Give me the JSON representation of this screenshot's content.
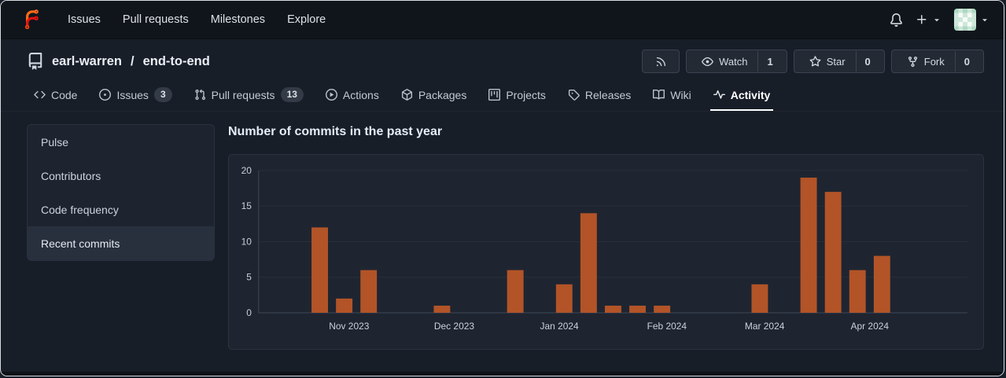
{
  "navbar": {
    "logo": "forgejo-logo",
    "items": [
      {
        "label": "Issues"
      },
      {
        "label": "Pull requests"
      },
      {
        "label": "Milestones"
      },
      {
        "label": "Explore"
      }
    ],
    "right_icons": [
      "bell-icon",
      "plus-icon",
      "caret-down-icon",
      "user-avatar",
      "caret-down-icon"
    ]
  },
  "repo_header": {
    "icon": "repo-book-icon",
    "owner": "earl-warren",
    "separator": "/",
    "name": "end-to-end",
    "actions": {
      "rss": {
        "icon": "rss-icon"
      },
      "watch": {
        "icon": "eye-icon",
        "label": "Watch",
        "count": "1"
      },
      "star": {
        "icon": "star-icon",
        "label": "Star",
        "count": "0"
      },
      "fork": {
        "icon": "fork-icon",
        "label": "Fork",
        "count": "0"
      }
    }
  },
  "tabs": [
    {
      "label": "Code",
      "icon": "code-icon"
    },
    {
      "label": "Issues",
      "icon": "issue-opened-icon",
      "badge": "3"
    },
    {
      "label": "Pull requests",
      "icon": "git-pull-request-icon",
      "badge": "13"
    },
    {
      "label": "Actions",
      "icon": "play-circle-icon"
    },
    {
      "label": "Packages",
      "icon": "package-icon"
    },
    {
      "label": "Projects",
      "icon": "project-board-icon"
    },
    {
      "label": "Releases",
      "icon": "tag-icon"
    },
    {
      "label": "Wiki",
      "icon": "book-icon"
    },
    {
      "label": "Activity",
      "icon": "pulse-icon",
      "active": true
    }
  ],
  "sidebar": {
    "items": [
      {
        "label": "Pulse"
      },
      {
        "label": "Contributors"
      },
      {
        "label": "Code frequency"
      },
      {
        "label": "Recent commits",
        "active": true
      }
    ]
  },
  "main": {
    "title": "Number of commits in the past year"
  },
  "chart_data": {
    "type": "bar",
    "title": "Number of commits in the past year",
    "x_unit": "week",
    "weeks": [
      0,
      0,
      12,
      2,
      6,
      0,
      0,
      1,
      0,
      0,
      6,
      0,
      4,
      14,
      1,
      1,
      1,
      0,
      0,
      0,
      4,
      0,
      19,
      17,
      6,
      8,
      0,
      0,
      0
    ],
    "month_ticks": [
      {
        "label": "Nov 2023",
        "week": 3.2
      },
      {
        "label": "Dec 2023",
        "week": 7.5
      },
      {
        "label": "Jan 2024",
        "week": 11.8
      },
      {
        "label": "Feb 2024",
        "week": 16.2
      },
      {
        "label": "Mar 2024",
        "week": 20.2
      },
      {
        "label": "Apr 2024",
        "week": 24.5
      }
    ],
    "yticks": [
      0,
      5,
      10,
      15,
      20
    ],
    "ylim": [
      0,
      20
    ],
    "bar_color": "#b25427",
    "grid": true,
    "legend": "none"
  },
  "colors": {
    "bar_orange": "#b25427",
    "navbar_bg": "#10151b",
    "page_bg": "#181e28",
    "card_bg": "#1e2531",
    "active_tab_underline": "#ffffff",
    "logo_orange": "#ff6c1a",
    "logo_red": "#e2120e"
  }
}
